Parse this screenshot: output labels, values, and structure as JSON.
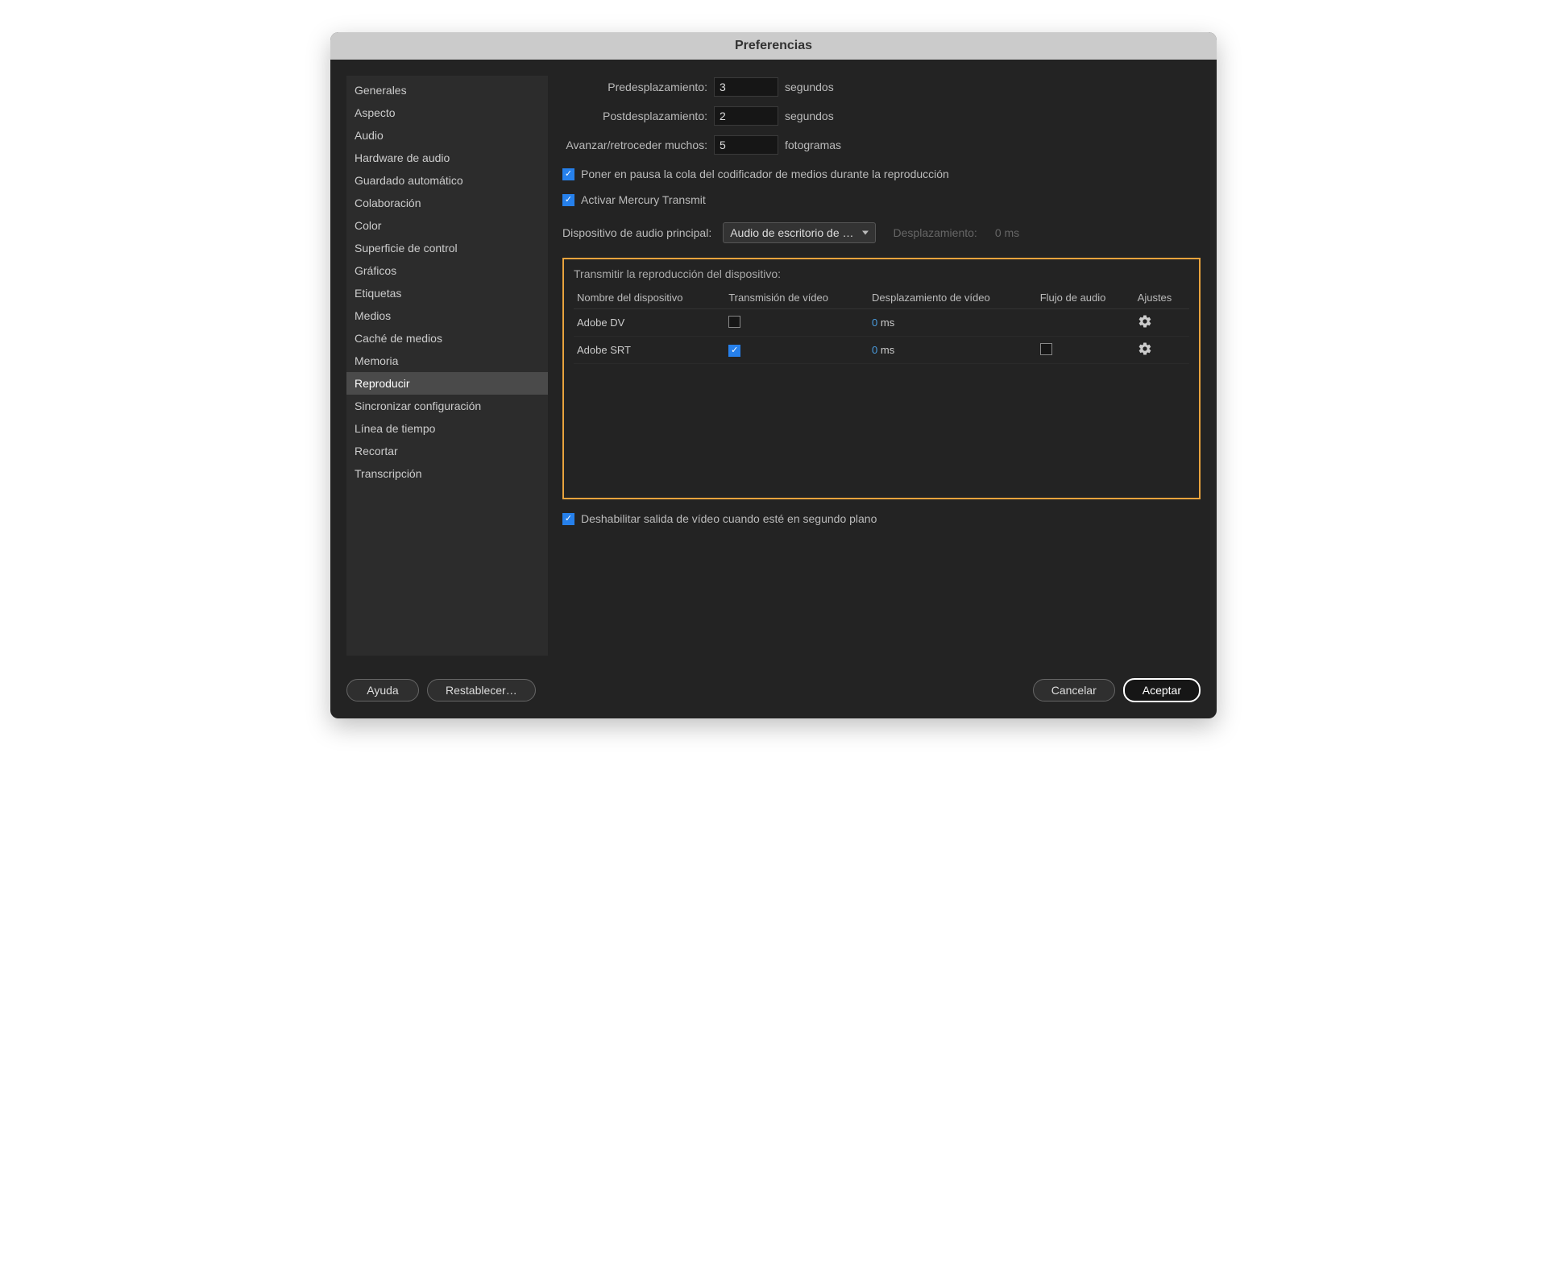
{
  "window": {
    "title": "Preferencias"
  },
  "sidebar": {
    "items": [
      "Generales",
      "Aspecto",
      "Audio",
      "Hardware de audio",
      "Guardado automático",
      "Colaboración",
      "Color",
      "Superficie de control",
      "Gráficos",
      "Etiquetas",
      "Medios",
      "Caché de medios",
      "Memoria",
      "Reproducir",
      "Sincronizar configuración",
      "Línea de tiempo",
      "Recortar",
      "Transcripción"
    ],
    "selected_index": 13
  },
  "form": {
    "preroll_label": "Predesplazamiento:",
    "preroll_value": "3",
    "preroll_unit": "segundos",
    "postroll_label": "Postdesplazamiento:",
    "postroll_value": "2",
    "postroll_unit": "segundos",
    "step_label": "Avanzar/retroceder muchos:",
    "step_value": "5",
    "step_unit": "fotogramas"
  },
  "checkboxes": {
    "pause_label": "Poner en pausa la cola del codificador de medios durante la reproducción",
    "pause_checked": true,
    "mercury_label": "Activar Mercury Transmit",
    "mercury_checked": true,
    "disable_bg_label": "Deshabilitar salida de vídeo cuando esté en segundo plano",
    "disable_bg_checked": true
  },
  "audio_device": {
    "label": "Dispositivo de audio principal:",
    "value": "Audio de escritorio de …",
    "offset_label": "Desplazamiento:",
    "offset_value": "0 ms"
  },
  "transmit": {
    "title": "Transmitir la reproducción del dispositivo:",
    "columns": [
      "Nombre del dispositivo",
      "Transmisión de vídeo",
      "Desplazamiento de vídeo",
      "Flujo de audio",
      "Ajustes"
    ],
    "rows": [
      {
        "name": "Adobe DV",
        "video_on": false,
        "offset": "0",
        "offset_unit": " ms",
        "audio_shown": false,
        "audio_on": false
      },
      {
        "name": "Adobe SRT",
        "video_on": true,
        "offset": "0",
        "offset_unit": " ms",
        "audio_shown": true,
        "audio_on": false
      }
    ]
  },
  "buttons": {
    "help": "Ayuda",
    "reset": "Restablecer…",
    "cancel": "Cancelar",
    "ok": "Aceptar"
  },
  "styling": {
    "window_bg": "#232323",
    "titlebar_bg": "#cbcbcb",
    "sidebar_bg": "#2c2c2c",
    "highlight_border": "#e8a33d",
    "accent_blue": "#2680eb",
    "link_blue": "#4a9de0"
  }
}
